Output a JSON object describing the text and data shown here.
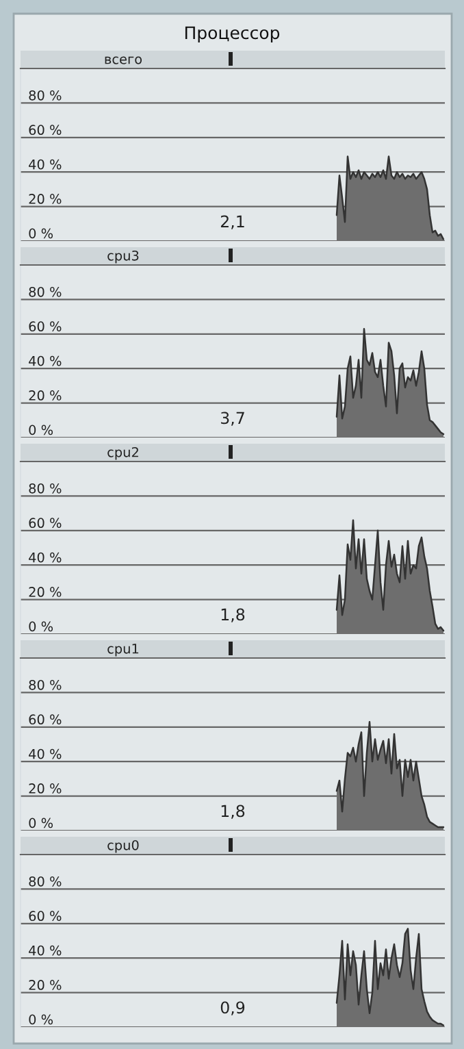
{
  "chart_data": [
    {
      "type": "area",
      "title": "Процессор",
      "subtitle": "всего",
      "categories": [
        null,
        null,
        null,
        null,
        null,
        null,
        null,
        null,
        null,
        null,
        null,
        null,
        null,
        null,
        null,
        null,
        null,
        null,
        null,
        null,
        null,
        null,
        null,
        null,
        null,
        null,
        null,
        null,
        null,
        null,
        null,
        null,
        null,
        null,
        null,
        null,
        null,
        null,
        null,
        null,
        null,
        null,
        null,
        null,
        null,
        null,
        null,
        null,
        null,
        null,
        null,
        null,
        null,
        null,
        null,
        null,
        null,
        null,
        null,
        null,
        null,
        null,
        null,
        null,
        null,
        null,
        null,
        null,
        null,
        null,
        null,
        null,
        null,
        null,
        null,
        null,
        null,
        null,
        null,
        null,
        null,
        null,
        null,
        null,
        null,
        null,
        null,
        null,
        null,
        null,
        null,
        null,
        null,
        null,
        null,
        null,
        null,
        null,
        null,
        null,
        null,
        null,
        null,
        null,
        null,
        null,
        null,
        null,
        null,
        null,
        null,
        null,
        null,
        null,
        null,
        null,
        null,
        null,
        null,
        null,
        null,
        null,
        null,
        null,
        null,
        null,
        null,
        null,
        null,
        null,
        null,
        null,
        null,
        null,
        null,
        null,
        null,
        null,
        null,
        null,
        null,
        null,
        null,
        null,
        null,
        null,
        null,
        null,
        null,
        null,
        null,
        null,
        null,
        null,
        null
      ],
      "series": [
        {
          "color": "#6e6e6e",
          "values": [
            null,
            null,
            null,
            null,
            null,
            null,
            null,
            null,
            null,
            null,
            null,
            null,
            null,
            null,
            null,
            null,
            null,
            null,
            null,
            null,
            null,
            null,
            null,
            null,
            null,
            null,
            null,
            null,
            null,
            null,
            null,
            null,
            null,
            null,
            null,
            null,
            null,
            null,
            null,
            null,
            null,
            null,
            null,
            null,
            null,
            null,
            null,
            null,
            null,
            null,
            null,
            null,
            null,
            null,
            null,
            null,
            null,
            null,
            null,
            null,
            null,
            null,
            null,
            null,
            null,
            null,
            null,
            null,
            null,
            null,
            null,
            null,
            null,
            null,
            null,
            null,
            null,
            null,
            null,
            null,
            null,
            null,
            null,
            null,
            null,
            null,
            null,
            null,
            null,
            null,
            null,
            null,
            null,
            null,
            null,
            null,
            null,
            null,
            null,
            null,
            null,
            null,
            null,
            null,
            null,
            null,
            null,
            null,
            null,
            null,
            null,
            null,
            null,
            null,
            null,
            15,
            38,
            25,
            11,
            49,
            36,
            40,
            37,
            41,
            36,
            40,
            38,
            36,
            39,
            37,
            40,
            37,
            41,
            36,
            49,
            38,
            36,
            40,
            37,
            39,
            36,
            38,
            37,
            39,
            36,
            38,
            40,
            36,
            30,
            15,
            5,
            6,
            3,
            4,
            1
          ]
        }
      ],
      "ylim": [
        0,
        100
      ],
      "yticks": [
        {
          "value": 0,
          "label": "0 %"
        },
        {
          "value": 20,
          "label": "20 %"
        },
        {
          "value": 40,
          "label": "40 %"
        },
        {
          "value": 60,
          "label": "60 %"
        },
        {
          "value": 80,
          "label": "80 %"
        }
      ],
      "grid": "y",
      "tick_labels": "y",
      "annotations": [
        "2,1"
      ]
    },
    {
      "type": "area",
      "title": "cpu3",
      "categories": [
        null,
        null,
        null,
        null,
        null,
        null,
        null,
        null,
        null,
        null,
        null,
        null,
        null,
        null,
        null,
        null,
        null,
        null,
        null,
        null,
        null,
        null,
        null,
        null,
        null,
        null,
        null,
        null,
        null,
        null,
        null,
        null,
        null,
        null,
        null,
        null,
        null,
        null,
        null,
        null,
        null,
        null,
        null,
        null,
        null,
        null,
        null,
        null,
        null,
        null,
        null,
        null,
        null,
        null,
        null,
        null,
        null,
        null,
        null,
        null,
        null,
        null,
        null,
        null,
        null,
        null,
        null,
        null,
        null,
        null,
        null,
        null,
        null,
        null,
        null,
        null,
        null,
        null,
        null,
        null,
        null,
        null,
        null,
        null,
        null,
        null,
        null,
        null,
        null,
        null,
        null,
        null,
        null,
        null,
        null,
        null,
        null,
        null,
        null,
        null,
        null,
        null,
        null,
        null,
        null,
        null,
        null,
        null,
        null,
        null,
        null,
        null,
        null,
        null,
        null,
        null,
        null,
        null,
        null,
        null,
        null,
        null,
        null,
        null,
        null,
        null,
        null,
        null,
        null,
        null,
        null,
        null,
        null,
        null,
        null,
        null,
        null,
        null,
        null,
        null,
        null,
        null,
        null,
        null,
        null,
        null,
        null,
        null,
        null,
        null,
        null,
        null,
        null,
        null,
        null
      ],
      "series": [
        {
          "color": "#6e6e6e",
          "values": [
            null,
            null,
            null,
            null,
            null,
            null,
            null,
            null,
            null,
            null,
            null,
            null,
            null,
            null,
            null,
            null,
            null,
            null,
            null,
            null,
            null,
            null,
            null,
            null,
            null,
            null,
            null,
            null,
            null,
            null,
            null,
            null,
            null,
            null,
            null,
            null,
            null,
            null,
            null,
            null,
            null,
            null,
            null,
            null,
            null,
            null,
            null,
            null,
            null,
            null,
            null,
            null,
            null,
            null,
            null,
            null,
            null,
            null,
            null,
            null,
            null,
            null,
            null,
            null,
            null,
            null,
            null,
            null,
            null,
            null,
            null,
            null,
            null,
            null,
            null,
            null,
            null,
            null,
            null,
            null,
            null,
            null,
            null,
            null,
            null,
            null,
            null,
            null,
            null,
            null,
            null,
            null,
            null,
            null,
            null,
            null,
            null,
            null,
            null,
            null,
            null,
            null,
            null,
            null,
            null,
            null,
            null,
            null,
            null,
            null,
            null,
            null,
            null,
            null,
            null,
            12,
            36,
            11,
            18,
            40,
            47,
            23,
            30,
            45,
            23,
            63,
            45,
            42,
            49,
            38,
            35,
            45,
            30,
            18,
            55,
            50,
            36,
            14,
            40,
            43,
            29,
            35,
            33,
            39,
            30,
            38,
            50,
            40,
            19,
            10,
            9,
            7,
            5,
            3,
            2
          ]
        }
      ],
      "ylim": [
        0,
        100
      ],
      "yticks": [
        {
          "value": 0,
          "label": "0 %"
        },
        {
          "value": 20,
          "label": "20 %"
        },
        {
          "value": 40,
          "label": "40 %"
        },
        {
          "value": 60,
          "label": "60 %"
        },
        {
          "value": 80,
          "label": "80 %"
        }
      ],
      "grid": "y",
      "tick_labels": "y",
      "annotations": [
        "3,7"
      ]
    },
    {
      "type": "area",
      "title": "cpu2",
      "categories": [
        null,
        null,
        null,
        null,
        null,
        null,
        null,
        null,
        null,
        null,
        null,
        null,
        null,
        null,
        null,
        null,
        null,
        null,
        null,
        null,
        null,
        null,
        null,
        null,
        null,
        null,
        null,
        null,
        null,
        null,
        null,
        null,
        null,
        null,
        null,
        null,
        null,
        null,
        null,
        null,
        null,
        null,
        null,
        null,
        null,
        null,
        null,
        null,
        null,
        null,
        null,
        null,
        null,
        null,
        null,
        null,
        null,
        null,
        null,
        null,
        null,
        null,
        null,
        null,
        null,
        null,
        null,
        null,
        null,
        null,
        null,
        null,
        null,
        null,
        null,
        null,
        null,
        null,
        null,
        null,
        null,
        null,
        null,
        null,
        null,
        null,
        null,
        null,
        null,
        null,
        null,
        null,
        null,
        null,
        null,
        null,
        null,
        null,
        null,
        null,
        null,
        null,
        null,
        null,
        null,
        null,
        null,
        null,
        null,
        null,
        null,
        null,
        null,
        null,
        null,
        null,
        null,
        null,
        null,
        null,
        null,
        null,
        null,
        null,
        null,
        null,
        null,
        null,
        null,
        null,
        null,
        null,
        null,
        null,
        null,
        null,
        null,
        null,
        null,
        null,
        null,
        null,
        null,
        null,
        null,
        null,
        null,
        null,
        null,
        null,
        null,
        null,
        null,
        null,
        null
      ],
      "series": [
        {
          "color": "#6e6e6e",
          "values": [
            null,
            null,
            null,
            null,
            null,
            null,
            null,
            null,
            null,
            null,
            null,
            null,
            null,
            null,
            null,
            null,
            null,
            null,
            null,
            null,
            null,
            null,
            null,
            null,
            null,
            null,
            null,
            null,
            null,
            null,
            null,
            null,
            null,
            null,
            null,
            null,
            null,
            null,
            null,
            null,
            null,
            null,
            null,
            null,
            null,
            null,
            null,
            null,
            null,
            null,
            null,
            null,
            null,
            null,
            null,
            null,
            null,
            null,
            null,
            null,
            null,
            null,
            null,
            null,
            null,
            null,
            null,
            null,
            null,
            null,
            null,
            null,
            null,
            null,
            null,
            null,
            null,
            null,
            null,
            null,
            null,
            null,
            null,
            null,
            null,
            null,
            null,
            null,
            null,
            null,
            null,
            null,
            null,
            null,
            null,
            null,
            null,
            null,
            null,
            null,
            null,
            null,
            null,
            null,
            null,
            null,
            null,
            null,
            null,
            null,
            null,
            null,
            null,
            null,
            null,
            14,
            34,
            11,
            20,
            52,
            43,
            66,
            38,
            55,
            35,
            55,
            32,
            25,
            20,
            40,
            60,
            30,
            14,
            40,
            54,
            39,
            46,
            35,
            30,
            51,
            32,
            54,
            35,
            40,
            38,
            51,
            56,
            45,
            38,
            25,
            16,
            6,
            3,
            4,
            2
          ]
        }
      ],
      "ylim": [
        0,
        100
      ],
      "yticks": [
        {
          "value": 0,
          "label": "0 %"
        },
        {
          "value": 20,
          "label": "20 %"
        },
        {
          "value": 40,
          "label": "40 %"
        },
        {
          "value": 60,
          "label": "60 %"
        },
        {
          "value": 80,
          "label": "80 %"
        }
      ],
      "grid": "y",
      "tick_labels": "y",
      "annotations": [
        "1,8"
      ]
    },
    {
      "type": "area",
      "title": "cpu1",
      "categories": [
        null,
        null,
        null,
        null,
        null,
        null,
        null,
        null,
        null,
        null,
        null,
        null,
        null,
        null,
        null,
        null,
        null,
        null,
        null,
        null,
        null,
        null,
        null,
        null,
        null,
        null,
        null,
        null,
        null,
        null,
        null,
        null,
        null,
        null,
        null,
        null,
        null,
        null,
        null,
        null,
        null,
        null,
        null,
        null,
        null,
        null,
        null,
        null,
        null,
        null,
        null,
        null,
        null,
        null,
        null,
        null,
        null,
        null,
        null,
        null,
        null,
        null,
        null,
        null,
        null,
        null,
        null,
        null,
        null,
        null,
        null,
        null,
        null,
        null,
        null,
        null,
        null,
        null,
        null,
        null,
        null,
        null,
        null,
        null,
        null,
        null,
        null,
        null,
        null,
        null,
        null,
        null,
        null,
        null,
        null,
        null,
        null,
        null,
        null,
        null,
        null,
        null,
        null,
        null,
        null,
        null,
        null,
        null,
        null,
        null,
        null,
        null,
        null,
        null,
        null,
        null,
        null,
        null,
        null,
        null,
        null,
        null,
        null,
        null,
        null,
        null,
        null,
        null,
        null,
        null,
        null,
        null,
        null,
        null,
        null,
        null,
        null,
        null,
        null,
        null,
        null,
        null,
        null,
        null,
        null,
        null,
        null,
        null,
        null,
        null,
        null,
        null,
        null,
        null,
        null
      ],
      "series": [
        {
          "color": "#6e6e6e",
          "values": [
            null,
            null,
            null,
            null,
            null,
            null,
            null,
            null,
            null,
            null,
            null,
            null,
            null,
            null,
            null,
            null,
            null,
            null,
            null,
            null,
            null,
            null,
            null,
            null,
            null,
            null,
            null,
            null,
            null,
            null,
            null,
            null,
            null,
            null,
            null,
            null,
            null,
            null,
            null,
            null,
            null,
            null,
            null,
            null,
            null,
            null,
            null,
            null,
            null,
            null,
            null,
            null,
            null,
            null,
            null,
            null,
            null,
            null,
            null,
            null,
            null,
            null,
            null,
            null,
            null,
            null,
            null,
            null,
            null,
            null,
            null,
            null,
            null,
            null,
            null,
            null,
            null,
            null,
            null,
            null,
            null,
            null,
            null,
            null,
            null,
            null,
            null,
            null,
            null,
            null,
            null,
            null,
            null,
            null,
            null,
            null,
            null,
            null,
            null,
            null,
            null,
            null,
            null,
            null,
            null,
            null,
            null,
            null,
            null,
            null,
            null,
            null,
            null,
            null,
            null,
            23,
            29,
            11,
            30,
            45,
            43,
            48,
            40,
            50,
            57,
            20,
            45,
            63,
            40,
            53,
            41,
            47,
            52,
            39,
            53,
            33,
            56,
            36,
            41,
            20,
            41,
            31,
            41,
            29,
            40,
            30,
            20,
            15,
            8,
            5,
            4,
            3,
            2,
            2,
            2
          ]
        }
      ],
      "ylim": [
        0,
        100
      ],
      "yticks": [
        {
          "value": 0,
          "label": "0 %"
        },
        {
          "value": 20,
          "label": "20 %"
        },
        {
          "value": 40,
          "label": "40 %"
        },
        {
          "value": 60,
          "label": "60 %"
        },
        {
          "value": 80,
          "label": "80 %"
        }
      ],
      "grid": "y",
      "tick_labels": "y",
      "annotations": [
        "1,8"
      ]
    },
    {
      "type": "area",
      "title": "cpu0",
      "categories": [
        null,
        null,
        null,
        null,
        null,
        null,
        null,
        null,
        null,
        null,
        null,
        null,
        null,
        null,
        null,
        null,
        null,
        null,
        null,
        null,
        null,
        null,
        null,
        null,
        null,
        null,
        null,
        null,
        null,
        null,
        null,
        null,
        null,
        null,
        null,
        null,
        null,
        null,
        null,
        null,
        null,
        null,
        null,
        null,
        null,
        null,
        null,
        null,
        null,
        null,
        null,
        null,
        null,
        null,
        null,
        null,
        null,
        null,
        null,
        null,
        null,
        null,
        null,
        null,
        null,
        null,
        null,
        null,
        null,
        null,
        null,
        null,
        null,
        null,
        null,
        null,
        null,
        null,
        null,
        null,
        null,
        null,
        null,
        null,
        null,
        null,
        null,
        null,
        null,
        null,
        null,
        null,
        null,
        null,
        null,
        null,
        null,
        null,
        null,
        null,
        null,
        null,
        null,
        null,
        null,
        null,
        null,
        null,
        null,
        null,
        null,
        null,
        null,
        null,
        null,
        null,
        null,
        null,
        null,
        null,
        null,
        null,
        null,
        null,
        null,
        null,
        null,
        null,
        null,
        null,
        null,
        null,
        null,
        null,
        null,
        null,
        null,
        null,
        null,
        null,
        null,
        null,
        null,
        null,
        null,
        null,
        null,
        null,
        null,
        null,
        null,
        null,
        null,
        null,
        null
      ],
      "series": [
        {
          "color": "#6e6e6e",
          "values": [
            null,
            null,
            null,
            null,
            null,
            null,
            null,
            null,
            null,
            null,
            null,
            null,
            null,
            null,
            null,
            null,
            null,
            null,
            null,
            null,
            null,
            null,
            null,
            null,
            null,
            null,
            null,
            null,
            null,
            null,
            null,
            null,
            null,
            null,
            null,
            null,
            null,
            null,
            null,
            null,
            null,
            null,
            null,
            null,
            null,
            null,
            null,
            null,
            null,
            null,
            null,
            null,
            null,
            null,
            null,
            null,
            null,
            null,
            null,
            null,
            null,
            null,
            null,
            null,
            null,
            null,
            null,
            null,
            null,
            null,
            null,
            null,
            null,
            null,
            null,
            null,
            null,
            null,
            null,
            null,
            null,
            null,
            null,
            null,
            null,
            null,
            null,
            null,
            null,
            null,
            null,
            null,
            null,
            null,
            null,
            null,
            null,
            null,
            null,
            null,
            null,
            null,
            null,
            null,
            null,
            null,
            null,
            null,
            null,
            null,
            null,
            null,
            null,
            null,
            null,
            14,
            30,
            50,
            16,
            48,
            30,
            44,
            36,
            13,
            30,
            44,
            22,
            8,
            20,
            50,
            22,
            37,
            30,
            45,
            28,
            40,
            48,
            36,
            29,
            37,
            54,
            57,
            33,
            22,
            40,
            54,
            22,
            15,
            9,
            6,
            4,
            3,
            2,
            2,
            1
          ]
        }
      ],
      "ylim": [
        0,
        100
      ],
      "yticks": [
        {
          "value": 0,
          "label": "0 %"
        },
        {
          "value": 20,
          "label": "20 %"
        },
        {
          "value": 40,
          "label": "40 %"
        },
        {
          "value": 60,
          "label": "60 %"
        },
        {
          "value": 80,
          "label": "80 %"
        }
      ],
      "grid": "y",
      "tick_labels": "y",
      "annotations": [
        "0,9"
      ]
    }
  ]
}
